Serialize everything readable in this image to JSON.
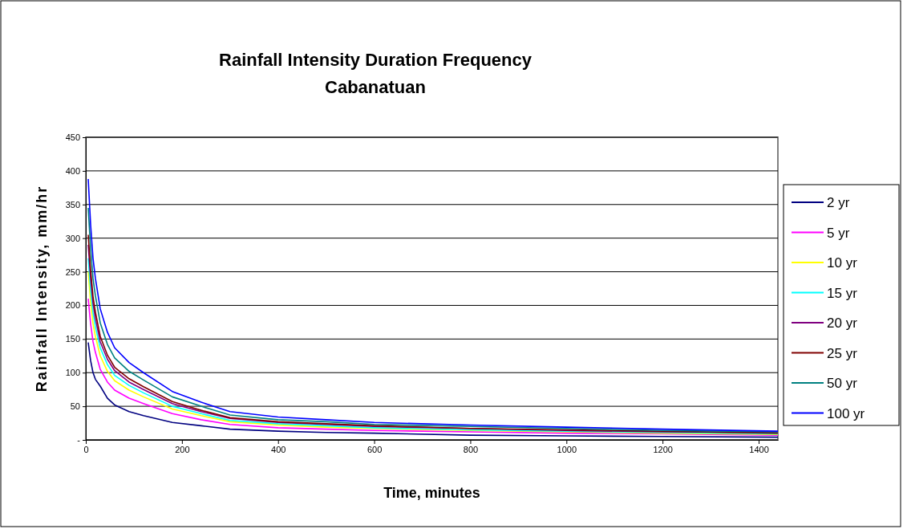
{
  "chart_data": {
    "type": "line",
    "title": "Rainfall Intensity Duration Frequency",
    "subtitle": "Cabanatuan",
    "xlabel": "Time, minutes",
    "ylabel": "Rainfall Intensity, mm/hr",
    "x": [
      5,
      10,
      15,
      20,
      30,
      45,
      60,
      90,
      120,
      180,
      240,
      300,
      400,
      500,
      600,
      800,
      1000,
      1200,
      1440
    ],
    "xlim": [
      0,
      1440
    ],
    "xticks": [
      0,
      200,
      400,
      600,
      800,
      1000,
      1200,
      1400
    ],
    "ylim": [
      0,
      450
    ],
    "yticks": [
      {
        "value": 0,
        "label": "-"
      },
      50,
      100,
      150,
      200,
      250,
      300,
      350,
      400,
      450
    ],
    "grid": "y",
    "legend": "right",
    "marker": "none",
    "line_style": "solid",
    "series": [
      {
        "name": "2 yr",
        "color": "#000080",
        "values": [
          145,
          118,
          100,
          90,
          80,
          62,
          52,
          42,
          36,
          26,
          21,
          16,
          13,
          11,
          10,
          7,
          6,
          5,
          4
        ]
      },
      {
        "name": "5 yr",
        "color": "#ff00ff",
        "values": [
          210,
          173,
          146,
          130,
          105,
          86,
          74,
          62,
          54,
          39,
          30,
          23,
          18,
          16,
          14,
          12,
          10,
          9,
          7
        ]
      },
      {
        "name": "10 yr",
        "color": "#ffff00",
        "values": [
          250,
          205,
          173,
          154,
          125,
          102,
          88,
          74,
          64,
          46,
          36,
          27,
          22,
          19,
          17,
          14,
          12,
          10,
          8
        ]
      },
      {
        "name": "15 yr",
        "color": "#00ffff",
        "values": [
          270,
          224,
          189,
          168,
          137,
          112,
          96,
          81,
          70,
          50,
          39,
          29,
          24,
          21,
          18,
          15,
          13,
          11,
          9
        ]
      },
      {
        "name": "20 yr",
        "color": "#800080",
        "values": [
          290,
          240,
          203,
          180,
          146,
          120,
          103,
          86,
          75,
          54,
          42,
          32,
          26,
          23,
          20,
          17,
          14,
          12,
          11
        ]
      },
      {
        "name": "25 yr",
        "color": "#800000",
        "values": [
          305,
          253,
          213,
          190,
          154,
          126,
          108,
          91,
          79,
          57,
          44,
          33,
          27,
          24,
          21,
          17,
          15,
          13,
          10
        ]
      },
      {
        "name": "50 yr",
        "color": "#008080",
        "values": [
          345,
          285,
          240,
          214,
          174,
          142,
          122,
          102,
          89,
          64,
          50,
          37,
          30,
          27,
          23,
          20,
          17,
          14,
          12
        ]
      },
      {
        "name": "100 yr",
        "color": "#0000ff",
        "values": [
          388,
          320,
          270,
          240,
          195,
          160,
          137,
          115,
          100,
          72,
          56,
          42,
          34,
          30,
          26,
          22,
          19,
          16,
          13
        ]
      }
    ]
  }
}
